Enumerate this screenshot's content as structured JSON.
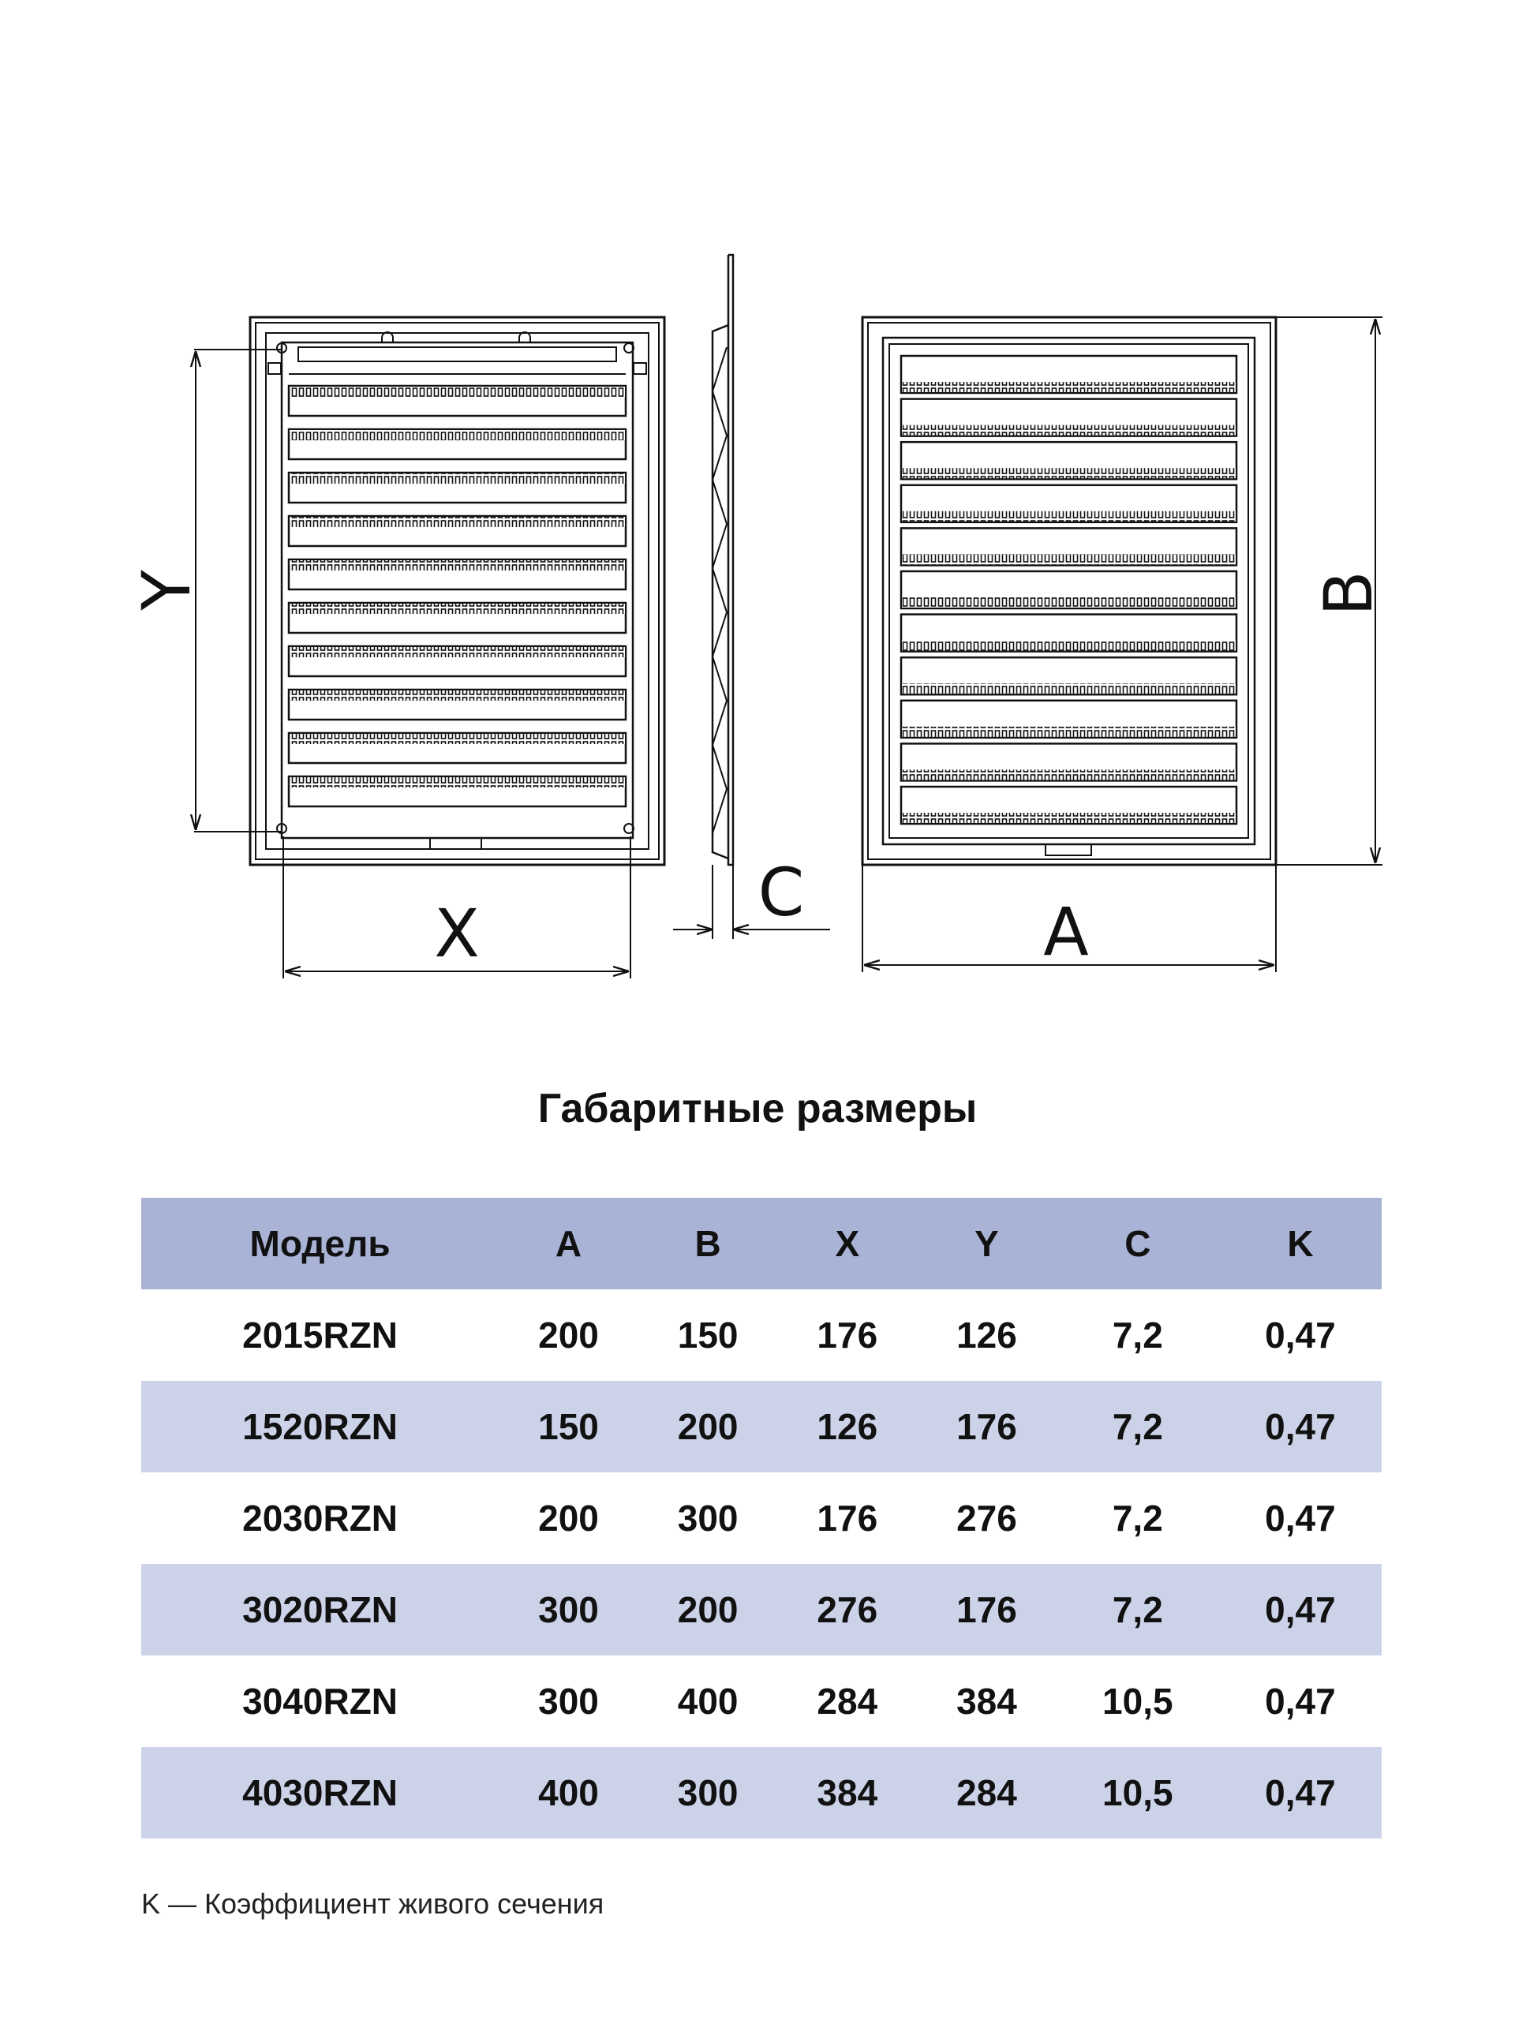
{
  "drawing": {
    "labels": {
      "y": "Y",
      "x": "X",
      "c": "C",
      "a": "A",
      "b": "B"
    },
    "back_view_slats": 10,
    "front_view_slats": 11
  },
  "title": "Габаритные размеры",
  "table": {
    "headers": [
      "Модель",
      "A",
      "B",
      "X",
      "Y",
      "C",
      "K"
    ],
    "rows": [
      [
        "2015RZN",
        "200",
        "150",
        "176",
        "126",
        "7,2",
        "0,47"
      ],
      [
        "1520RZN",
        "150",
        "200",
        "126",
        "176",
        "7,2",
        "0,47"
      ],
      [
        "2030RZN",
        "200",
        "300",
        "176",
        "276",
        "7,2",
        "0,47"
      ],
      [
        "3020RZN",
        "300",
        "200",
        "276",
        "176",
        "7,2",
        "0,47"
      ],
      [
        "3040RZN",
        "300",
        "400",
        "284",
        "384",
        "10,5",
        "0,47"
      ],
      [
        "4030RZN",
        "400",
        "300",
        "384",
        "284",
        "10,5",
        "0,47"
      ]
    ]
  },
  "footnote": "K — Коэффициент живого сечения",
  "colors": {
    "header_bg": "#a9b3d6",
    "alt_row_bg": "#ccd2e8",
    "line": "#111111"
  }
}
